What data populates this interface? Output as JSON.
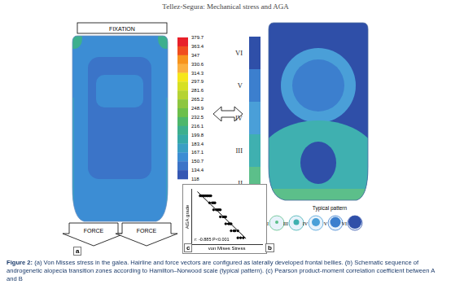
{
  "header": "Tellez-Segura: Mechanical stress and AGA",
  "panel_a": {
    "label": "a",
    "fixation": "FIXATION",
    "force_labels": [
      "FORCE",
      "FORCE"
    ],
    "colorbar": {
      "ticks": [
        379.7,
        363.4,
        347,
        330.6,
        314.3,
        297.9,
        281.6,
        265.2,
        248.9,
        232.5,
        216.1,
        199.8,
        183.4,
        167.1,
        150.7,
        134.4,
        118
      ],
      "colors": [
        "#e8202a",
        "#f04e1e",
        "#f7941d",
        "#fbb040",
        "#f6e61a",
        "#d7e022",
        "#b5d334",
        "#8dc63f",
        "#6cbf4a",
        "#4db76b",
        "#3daf8e",
        "#36a9a8",
        "#3a9fc4",
        "#3c8dd4",
        "#3b74c8",
        "#3557b3"
      ]
    }
  },
  "panel_b": {
    "label": "b",
    "grades": [
      {
        "label": "VI",
        "color": "#2f4fa8"
      },
      {
        "label": "V",
        "color": "#3c7fce"
      },
      {
        "label": "IV",
        "color": "#4a9fd8"
      },
      {
        "label": "III",
        "color": "#3fb0b0"
      },
      {
        "label": "II",
        "color": "#5cbf8a"
      }
    ],
    "typical_pattern": {
      "title": "Typical pattern",
      "labels": [
        "II",
        "III",
        "IV",
        "V",
        "VI"
      ]
    }
  },
  "chart_data": {
    "label": "c",
    "type": "scatter",
    "x_label": "von Mises Stress",
    "y_label": "AGA grade",
    "annotations": [
      "r: -0.885 P<0.001"
    ],
    "xlim": [
      118,
      380
    ],
    "ylim": [
      0,
      8
    ],
    "grid": false,
    "tick_labels": false,
    "series": [
      {
        "color": "#000000",
        "marker": "circle",
        "x": [
          150,
          155,
          160,
          165,
          170,
          175,
          180,
          185,
          190,
          185,
          195,
          200,
          205,
          200,
          210,
          215,
          220,
          225,
          225,
          235,
          240,
          245,
          245,
          255,
          260,
          265,
          265,
          275,
          280,
          290,
          290,
          300,
          310
        ],
        "values": [
          7,
          7,
          7,
          7,
          7,
          7,
          7,
          7,
          7,
          6,
          6,
          6,
          6,
          5,
          5,
          5,
          5,
          5,
          4,
          4,
          4,
          4,
          3,
          3,
          3,
          3,
          2,
          2,
          2,
          2,
          1,
          1,
          1
        ]
      },
      {
        "type": "line",
        "color": "#000000",
        "line_style": "solid",
        "x": [
          140,
          320
        ],
        "values": [
          7.6,
          0.9
        ]
      }
    ]
  },
  "caption": {
    "label": "Figure 2:",
    "text": "(a) Von Misses stress in the galea. Hairline and force vectors are configured as laterally developed frontal bellies. (b) Schematic sequence of androgenetic alopecia transition zones according to Hamilton–Norwood scale (typical pattern). (c) Pearson product-moment correlation coefficient between A and B"
  }
}
